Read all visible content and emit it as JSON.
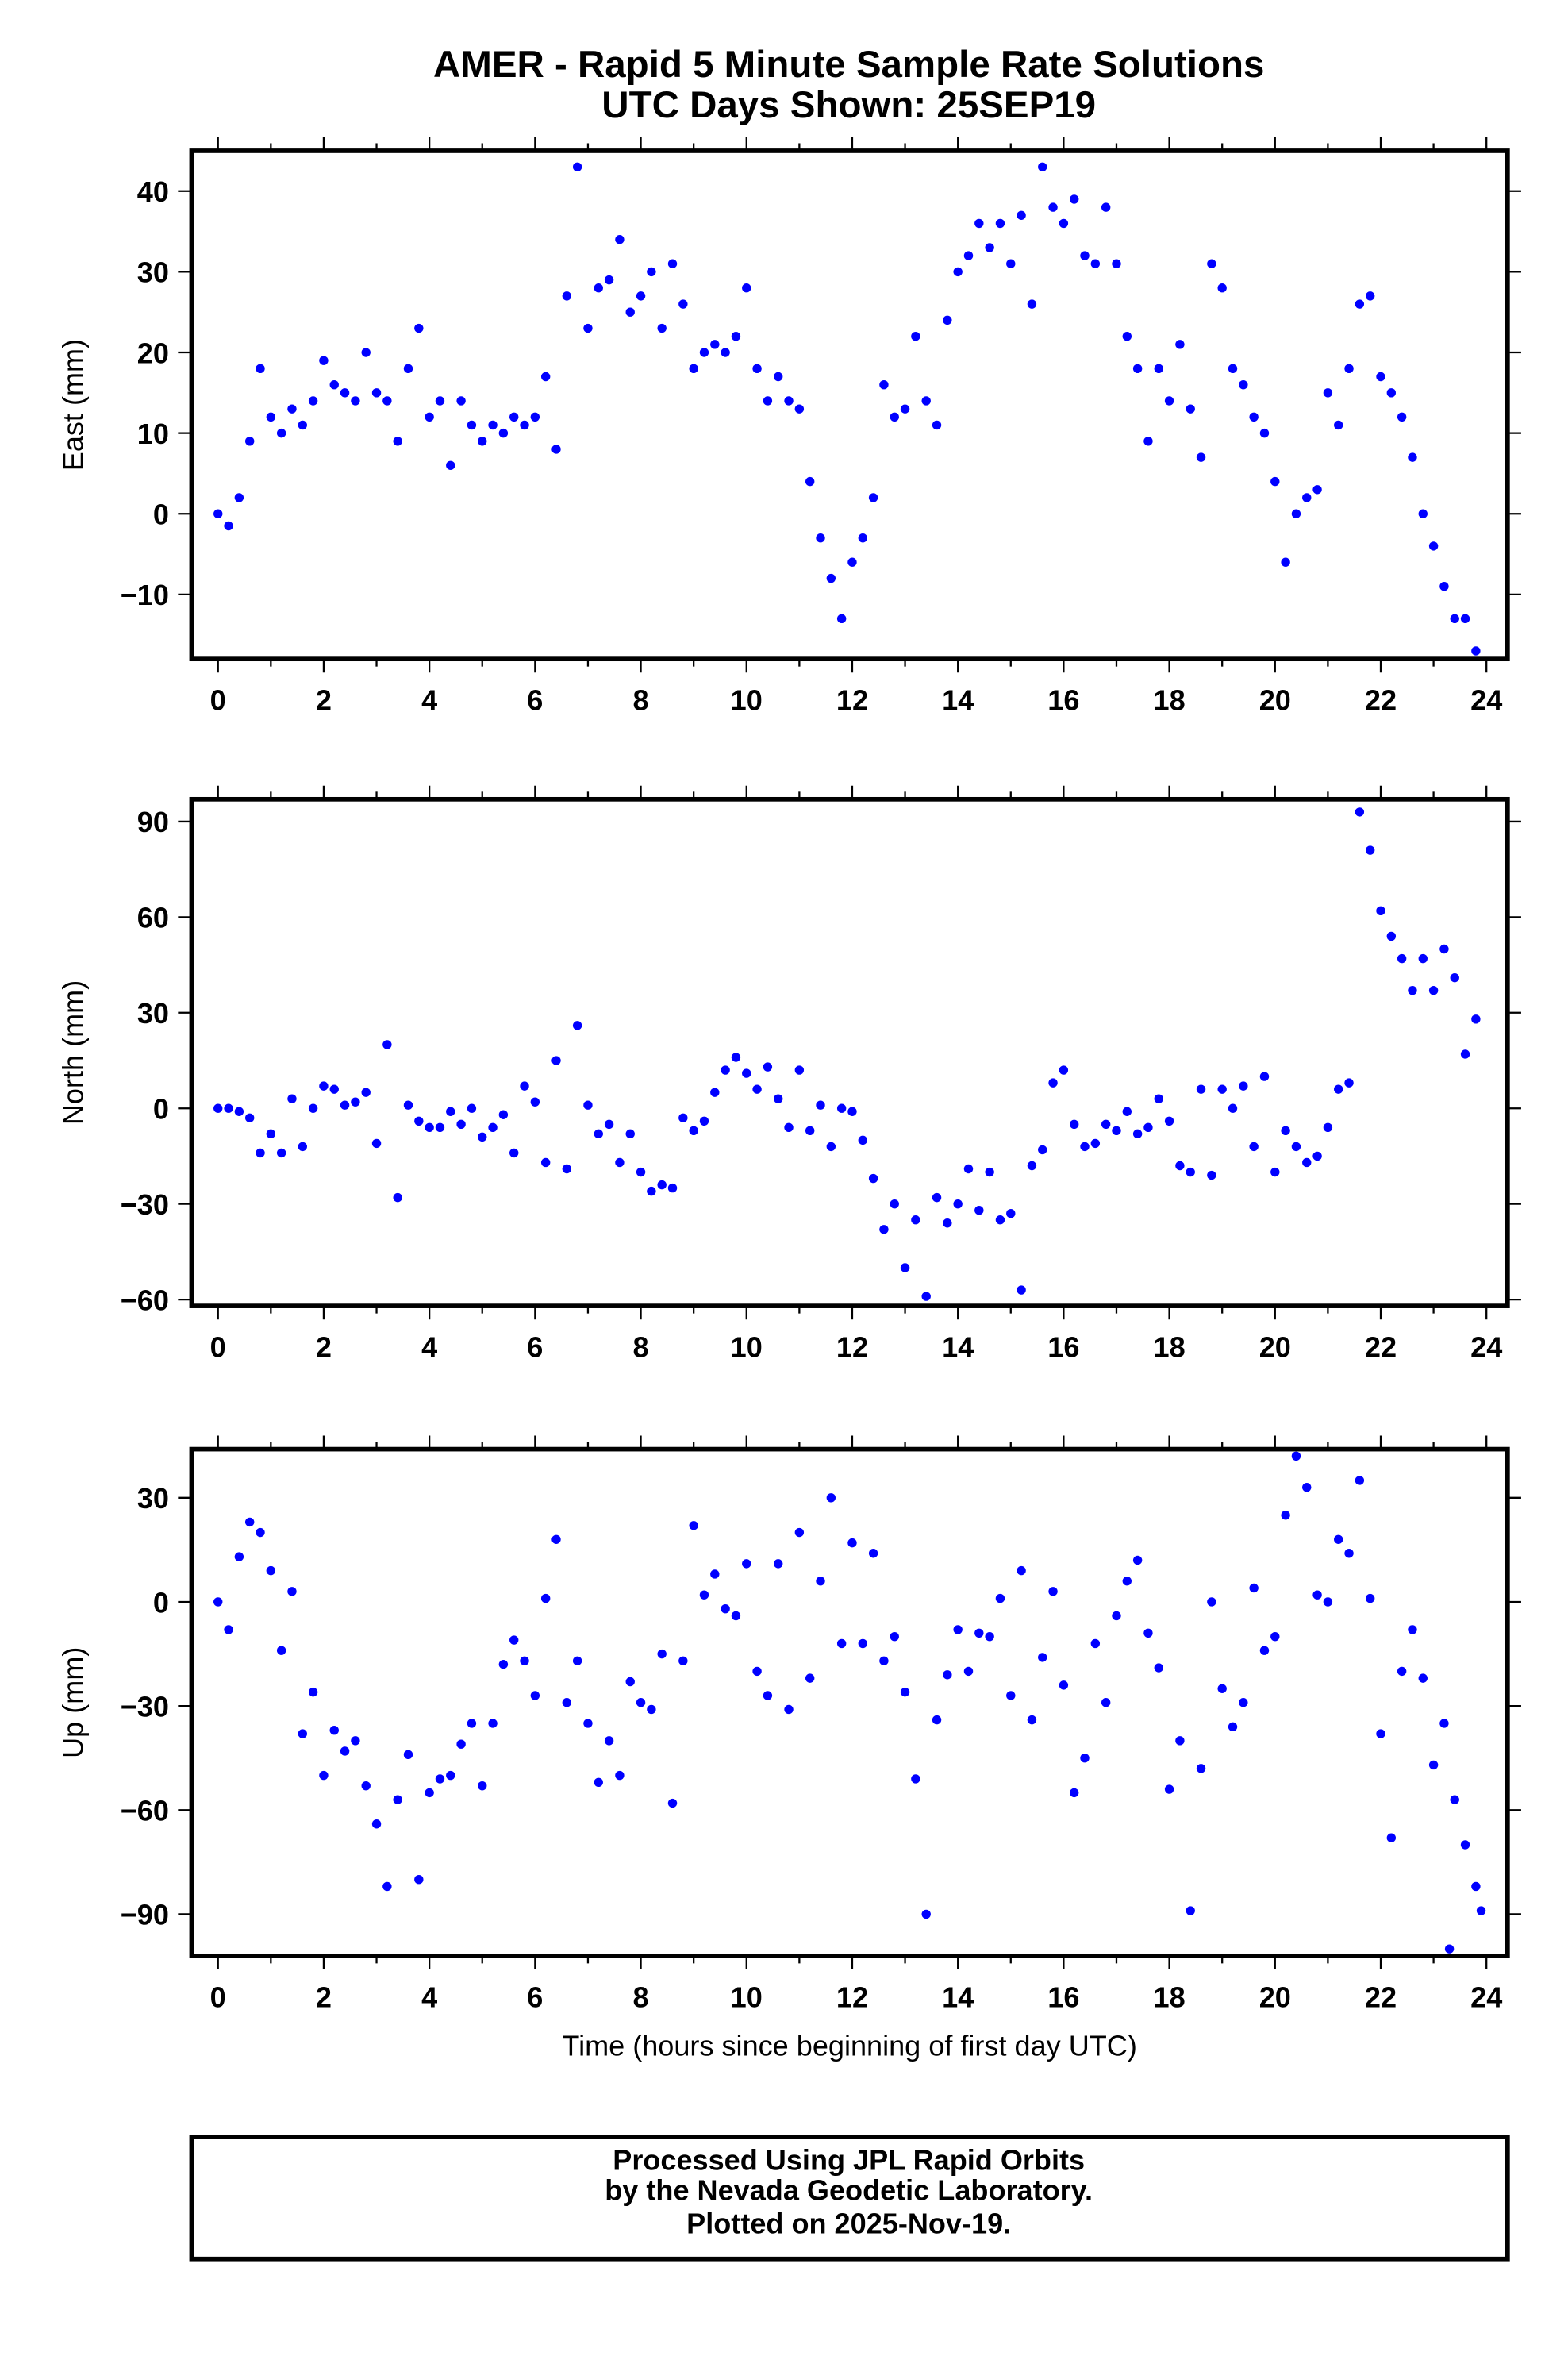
{
  "title": "AMER - Rapid 5 Minute Sample Rate Solutions",
  "subtitle": "UTC Days Shown:  25SEP19",
  "footer": [
    "Processed Using JPL Rapid Orbits",
    "by the Nevada Geodetic Laboratory.",
    "Plotted on 2025-Nov-19."
  ],
  "colors": {
    "points": "#0000ff",
    "axes": "#000000"
  },
  "chart_data": [
    {
      "type": "scatter",
      "ylabel": "East (mm)",
      "xlabel": "",
      "xlim": [
        -0.5,
        24.4
      ],
      "ylim": [
        -18,
        45
      ],
      "xticks": [
        0,
        2,
        4,
        6,
        8,
        10,
        12,
        14,
        16,
        18,
        20,
        22,
        24
      ],
      "yticks": [
        -10,
        0,
        10,
        20,
        30,
        40
      ],
      "x_start": 0,
      "x_step": 0.2,
      "values": [
        0,
        -1.5,
        2,
        9,
        18,
        12,
        10,
        13,
        11,
        14,
        19,
        16,
        15,
        14,
        20,
        15,
        14,
        9,
        18,
        23,
        12,
        14,
        6,
        14,
        11,
        9,
        11,
        10,
        12,
        11,
        12,
        17,
        8,
        27,
        43,
        23,
        28,
        29,
        34,
        25,
        27,
        30,
        23,
        31,
        26,
        18,
        20,
        21,
        20,
        22,
        28,
        18,
        14,
        17,
        14,
        13,
        4,
        -3,
        -8,
        -13,
        -6,
        -3,
        2,
        16,
        12,
        13,
        22,
        14,
        11,
        24,
        30,
        32,
        36,
        33,
        36,
        31,
        37,
        26,
        43,
        38,
        36,
        39,
        32,
        31,
        38,
        31,
        22,
        18,
        9,
        18,
        14,
        21,
        13,
        7,
        31,
        28,
        18,
        16,
        12,
        10,
        4,
        -6,
        0,
        2,
        3,
        15,
        11,
        18,
        26,
        27,
        17,
        15,
        12,
        7,
        0,
        -4,
        -9,
        -13,
        -13,
        -17
      ]
    },
    {
      "type": "scatter",
      "ylabel": "North (mm)",
      "xlabel": "",
      "xlim": [
        -0.5,
        24.4
      ],
      "ylim": [
        -62,
        97
      ],
      "xticks": [
        0,
        2,
        4,
        6,
        8,
        10,
        12,
        14,
        16,
        18,
        20,
        22,
        24
      ],
      "yticks": [
        -60,
        -30,
        0,
        30,
        60,
        90
      ],
      "x_start": 0,
      "x_step": 0.2,
      "values": [
        0,
        0,
        -1,
        -3,
        -14,
        -8,
        -14,
        3,
        -12,
        0,
        7,
        6,
        1,
        2,
        5,
        -11,
        20,
        -28,
        1,
        -4,
        -6,
        -6,
        -1,
        -5,
        0,
        -9,
        -6,
        -2,
        -14,
        7,
        2,
        -17,
        15,
        -19,
        26,
        1,
        -8,
        -5,
        -17,
        -8,
        -20,
        -26,
        -24,
        -25,
        -3,
        -7,
        -4,
        5,
        12,
        16,
        11,
        6,
        13,
        3,
        -6,
        12,
        -7,
        1,
        -12,
        0,
        -1,
        -10,
        -22,
        -38,
        -30,
        -50,
        -35,
        -59,
        -28,
        -36,
        -30,
        -19,
        -32,
        -20,
        -35,
        -33,
        -57,
        -18,
        -13,
        8,
        12,
        -5,
        -12,
        -11,
        -5,
        -7,
        -1,
        -8,
        -6,
        3,
        -4,
        -18,
        -20,
        6,
        -21,
        6,
        0,
        7,
        -12,
        10,
        -20,
        -7,
        -12,
        -17,
        -15,
        -6,
        6,
        8,
        93,
        81,
        62,
        54,
        47,
        37,
        47,
        37,
        50,
        41,
        17,
        28
      ]
    },
    {
      "type": "scatter",
      "ylabel": "Up (mm)",
      "xlabel": "Time (hours since beginning of first day UTC)",
      "xlim": [
        -0.5,
        24.4
      ],
      "ylim": [
        -102,
        44
      ],
      "xticks": [
        0,
        2,
        4,
        6,
        8,
        10,
        12,
        14,
        16,
        18,
        20,
        22,
        24
      ],
      "yticks": [
        -90,
        -60,
        -30,
        0,
        30
      ],
      "x_start": 0,
      "x_step": 0.2,
      "values": [
        0,
        -8,
        13,
        23,
        20,
        9,
        -14,
        3,
        -38,
        -26,
        -50,
        -37,
        -43,
        -40,
        -53,
        -64,
        -82,
        -57,
        -44,
        -80,
        -55,
        -51,
        -50,
        -41,
        -35,
        -53,
        -35,
        -18,
        -11,
        -17,
        -27,
        1,
        18,
        -29,
        -17,
        -35,
        -52,
        -40,
        -50,
        -23,
        -29,
        -31,
        -15,
        -58,
        -17,
        22,
        2,
        8,
        -2,
        -4,
        11,
        -20,
        -27,
        11,
        -31,
        20,
        -22,
        6,
        30,
        -12,
        17,
        -12,
        14,
        -17,
        -10,
        -26,
        -51,
        -90,
        -34,
        -21,
        -8,
        -20,
        -9,
        -10,
        1,
        -27,
        9,
        -34,
        -16,
        3,
        -24,
        -55,
        -45,
        -12,
        -29,
        -4,
        6,
        12,
        -9,
        -19,
        -54,
        -40,
        -89,
        -48,
        0,
        -25,
        -36,
        -29,
        4,
        -14,
        -10,
        25,
        42,
        33,
        2,
        0,
        18,
        14,
        35,
        1,
        -38,
        -68,
        -20,
        -8,
        -22,
        -47,
        -35,
        -57,
        -70,
        -82
      ],
      "extra_points": [
        [
          23.3,
          -100
        ],
        [
          23.9,
          -89
        ]
      ]
    }
  ]
}
